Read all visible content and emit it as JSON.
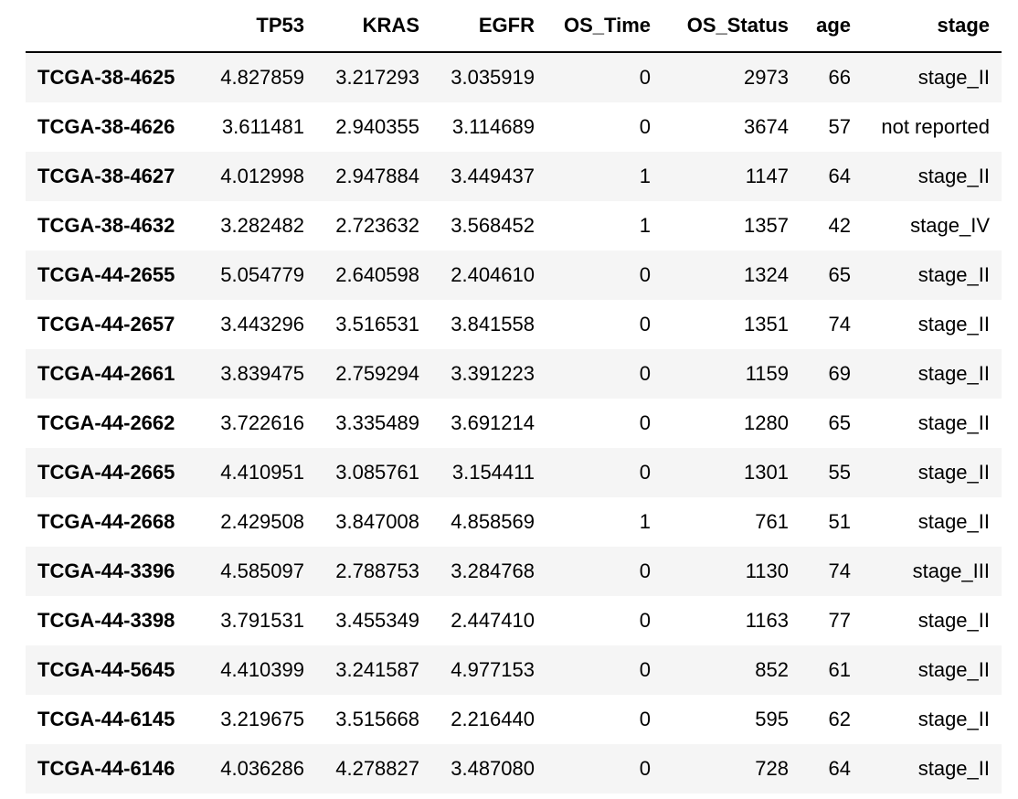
{
  "columns": [
    "",
    "TP53",
    "KRAS",
    "EGFR",
    "OS_Time",
    "OS_Status",
    "age",
    "stage"
  ],
  "rows": [
    {
      "index": "TCGA-38-4625",
      "values": [
        "4.827859",
        "3.217293",
        "3.035919",
        "0",
        "2973",
        "66",
        "stage_II"
      ]
    },
    {
      "index": "TCGA-38-4626",
      "values": [
        "3.611481",
        "2.940355",
        "3.114689",
        "0",
        "3674",
        "57",
        "not reported"
      ]
    },
    {
      "index": "TCGA-38-4627",
      "values": [
        "4.012998",
        "2.947884",
        "3.449437",
        "1",
        "1147",
        "64",
        "stage_II"
      ]
    },
    {
      "index": "TCGA-38-4632",
      "values": [
        "3.282482",
        "2.723632",
        "3.568452",
        "1",
        "1357",
        "42",
        "stage_IV"
      ]
    },
    {
      "index": "TCGA-44-2655",
      "values": [
        "5.054779",
        "2.640598",
        "2.404610",
        "0",
        "1324",
        "65",
        "stage_II"
      ]
    },
    {
      "index": "TCGA-44-2657",
      "values": [
        "3.443296",
        "3.516531",
        "3.841558",
        "0",
        "1351",
        "74",
        "stage_II"
      ]
    },
    {
      "index": "TCGA-44-2661",
      "values": [
        "3.839475",
        "2.759294",
        "3.391223",
        "0",
        "1159",
        "69",
        "stage_II"
      ]
    },
    {
      "index": "TCGA-44-2662",
      "values": [
        "3.722616",
        "3.335489",
        "3.691214",
        "0",
        "1280",
        "65",
        "stage_II"
      ]
    },
    {
      "index": "TCGA-44-2665",
      "values": [
        "4.410951",
        "3.085761",
        "3.154411",
        "0",
        "1301",
        "55",
        "stage_II"
      ]
    },
    {
      "index": "TCGA-44-2668",
      "values": [
        "2.429508",
        "3.847008",
        "4.858569",
        "1",
        "761",
        "51",
        "stage_II"
      ]
    },
    {
      "index": "TCGA-44-3396",
      "values": [
        "4.585097",
        "2.788753",
        "3.284768",
        "0",
        "1130",
        "74",
        "stage_III"
      ]
    },
    {
      "index": "TCGA-44-3398",
      "values": [
        "3.791531",
        "3.455349",
        "2.447410",
        "0",
        "1163",
        "77",
        "stage_II"
      ]
    },
    {
      "index": "TCGA-44-5645",
      "values": [
        "4.410399",
        "3.241587",
        "4.977153",
        "0",
        "852",
        "61",
        "stage_II"
      ]
    },
    {
      "index": "TCGA-44-6145",
      "values": [
        "3.219675",
        "3.515668",
        "2.216440",
        "0",
        "595",
        "62",
        "stage_II"
      ]
    },
    {
      "index": "TCGA-44-6146",
      "values": [
        "4.036286",
        "4.278827",
        "3.487080",
        "0",
        "728",
        "64",
        "stage_II"
      ]
    }
  ],
  "colors": {
    "row_stripe": "#f5f5f5",
    "row_plain": "#ffffff",
    "header_rule": "#000000",
    "text": "#000000"
  }
}
